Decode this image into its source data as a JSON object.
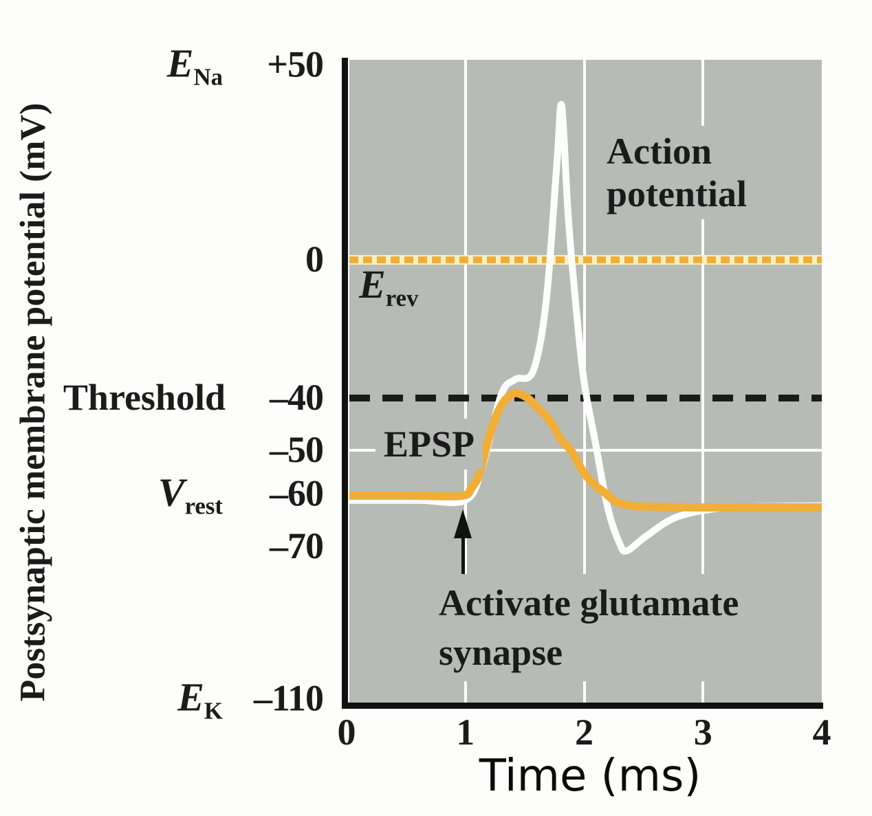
{
  "figure": {
    "y_axis_title": "Postsynaptic membrane potential (mV)",
    "x_axis_title": "Time (ms)",
    "y_ticks": [
      {
        "symbol_base": "E",
        "symbol_sub": "Na",
        "label": "+50",
        "mv": 50
      },
      {
        "label": "0",
        "mv": 0
      },
      {
        "keyword": "Threshold",
        "label": "–40",
        "mv": -40
      },
      {
        "label": "–50",
        "mv": -50
      },
      {
        "symbol_base": "V",
        "symbol_sub": "rest",
        "label": "–60",
        "mv": -60
      },
      {
        "label": "–70",
        "mv": -70
      },
      {
        "symbol_base": "E",
        "symbol_sub": "K",
        "label": "–110",
        "mv": -110
      }
    ],
    "x_ticks": [
      {
        "label": "0",
        "t": 0
      },
      {
        "label": "1",
        "t": 1
      },
      {
        "label": "2",
        "t": 2
      },
      {
        "label": "3",
        "t": 3
      },
      {
        "label": "4",
        "t": 4
      }
    ],
    "annotations": {
      "action_potential_line1": "Action",
      "action_potential_line2": "potential",
      "epsp": "EPSP",
      "erev_base": "E",
      "erev_sub": "rev",
      "activate_line1": "Activate glutamate",
      "activate_line2": "synapse"
    },
    "colors": {
      "plot_background": "#b6bbb6",
      "epsp_curve": "#f0ae38",
      "action_potential_curve": "#ffffff",
      "erev_dash_orange": "#f0ae38",
      "erev_dash_cream": "#f9efc4",
      "threshold_dash": "#1b1b1b",
      "axis": "#111111",
      "text": "#1b1b1b"
    }
  },
  "chart_data": {
    "type": "line",
    "xlabel": "Time (ms)",
    "ylabel": "Postsynaptic membrane potential (mV)",
    "xlim": [
      0,
      4
    ],
    "x_ticks": [
      0,
      1,
      2,
      3,
      4
    ],
    "y_tick_values": [
      50,
      0,
      -40,
      -50,
      -60,
      -70,
      -110
    ],
    "y_tick_labels": [
      "E_Na +50",
      "0 (E_rev)",
      "Threshold –40",
      "–50",
      "V_rest –60",
      "–70",
      "E_K –110"
    ],
    "y_axis_note": "non-uniform tick spacing as printed in the original figure",
    "x_gridlines": [
      1,
      2,
      3
    ],
    "y_gridlines": [
      -50
    ],
    "reference_lines": [
      {
        "value": 0,
        "label": "E_rev",
        "style": "dashed",
        "color": "#f0ae38"
      },
      {
        "value": -40,
        "label": "Threshold",
        "style": "dashed",
        "color": "#1b1b1b"
      }
    ],
    "series": [
      {
        "name": "EPSP",
        "color": "#f0ae38",
        "points": [
          [
            0,
            -60
          ],
          [
            0.55,
            -60
          ],
          [
            0.97,
            -60
          ],
          [
            1.05,
            -58.3
          ],
          [
            1.11,
            -55.8
          ],
          [
            1.15,
            -52
          ],
          [
            1.2,
            -47.4
          ],
          [
            1.26,
            -43.4
          ],
          [
            1.32,
            -40.8
          ],
          [
            1.37,
            -39.4
          ],
          [
            1.41,
            -38.6
          ],
          [
            1.46,
            -38.8
          ],
          [
            1.53,
            -40.1
          ],
          [
            1.6,
            -41.7
          ],
          [
            1.71,
            -44.3
          ],
          [
            1.8,
            -47.8
          ],
          [
            1.89,
            -50.1
          ],
          [
            1.99,
            -54.7
          ],
          [
            2.09,
            -57.7
          ],
          [
            2.18,
            -59.5
          ],
          [
            2.26,
            -61.1
          ],
          [
            2.35,
            -61.8
          ],
          [
            2.47,
            -62.1
          ],
          [
            2.9,
            -62.3
          ],
          [
            3.4,
            -62.3
          ],
          [
            4,
            -62.3
          ]
        ]
      },
      {
        "name": "Action potential",
        "color": "#ffffff",
        "points": [
          [
            0,
            -60.9
          ],
          [
            0.6,
            -60.9
          ],
          [
            1.0,
            -60.9
          ],
          [
            1.14,
            -53.8
          ],
          [
            1.3,
            -39.2
          ],
          [
            1.42,
            -34.6
          ],
          [
            1.57,
            -32.2
          ],
          [
            1.68,
            -12
          ],
          [
            1.77,
            25
          ],
          [
            1.81,
            40
          ],
          [
            1.86,
            14
          ],
          [
            1.9,
            -2
          ],
          [
            1.99,
            -33
          ],
          [
            2.09,
            -48
          ],
          [
            2.2,
            -62.6
          ],
          [
            2.3,
            -69.5
          ],
          [
            2.36,
            -71.1
          ],
          [
            2.52,
            -68
          ],
          [
            2.78,
            -64.2
          ],
          [
            3.16,
            -62.4
          ],
          [
            3.6,
            -62.1
          ],
          [
            4,
            -62
          ]
        ]
      }
    ],
    "annotations": [
      {
        "text": "Activate glutamate synapse",
        "t": 1,
        "kind": "arrow-up"
      },
      {
        "text": "Action potential",
        "kind": "label"
      },
      {
        "text": "EPSP",
        "kind": "label"
      },
      {
        "text": "E_rev",
        "kind": "label",
        "value": 0
      }
    ]
  }
}
